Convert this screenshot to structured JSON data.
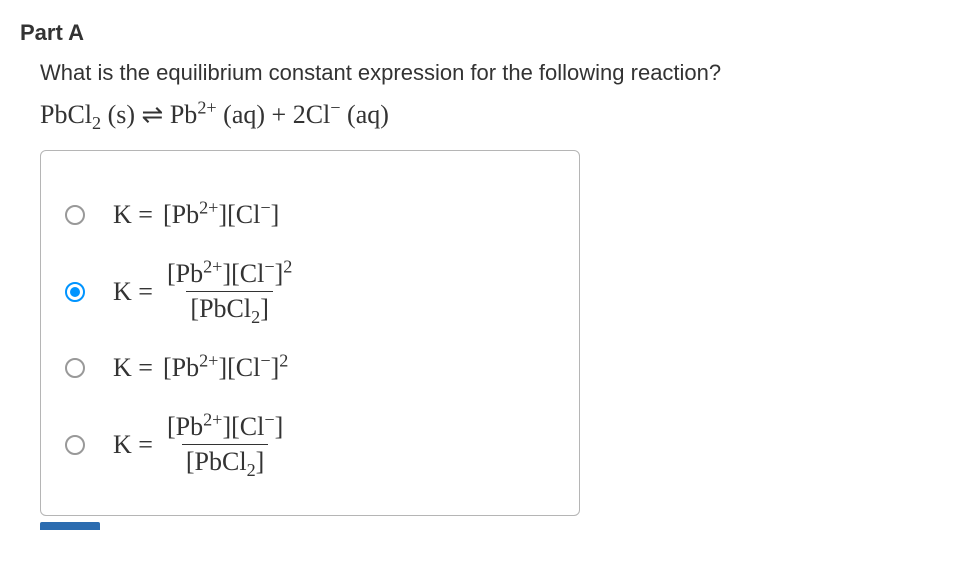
{
  "part": {
    "title": "Part A",
    "question": "What is the equilibrium constant expression for the following reaction?"
  },
  "reaction": {
    "reactant": {
      "formula": "PbCl",
      "sub": "2",
      "state": "(s)"
    },
    "arrow": "⇌",
    "product1": {
      "formula": "Pb",
      "sup": "2+",
      "state": "(aq)"
    },
    "plus": "+",
    "coeff2": "2",
    "product2": {
      "formula": "Cl",
      "sup": "−",
      "state": "(aq)"
    }
  },
  "options": {
    "selected_index": 1,
    "items": [
      {
        "display_type": "line",
        "keq": "K =",
        "line_html": "[Pb<sup>2+</sup>][Cl<sup>−</sup>]"
      },
      {
        "display_type": "frac",
        "keq": "K =",
        "num_html": "[Pb<sup>2+</sup>][Cl<sup>−</sup>]<sup>2</sup>",
        "den_html": "[PbCl<sub>2</sub>]"
      },
      {
        "display_type": "line",
        "keq": "K =",
        "line_html": "[Pb<sup>2+</sup>][Cl<sup>−</sup>]<sup>2</sup>"
      },
      {
        "display_type": "frac",
        "keq": "K =",
        "num_html": "[Pb<sup>2+</sup>][Cl<sup>−</sup>]",
        "den_html": "[PbCl<sub>2</sub>]"
      }
    ]
  },
  "colors": {
    "accent": "#0094ff",
    "border": "#b5b5b5",
    "text": "#333333",
    "background": "#ffffff"
  }
}
